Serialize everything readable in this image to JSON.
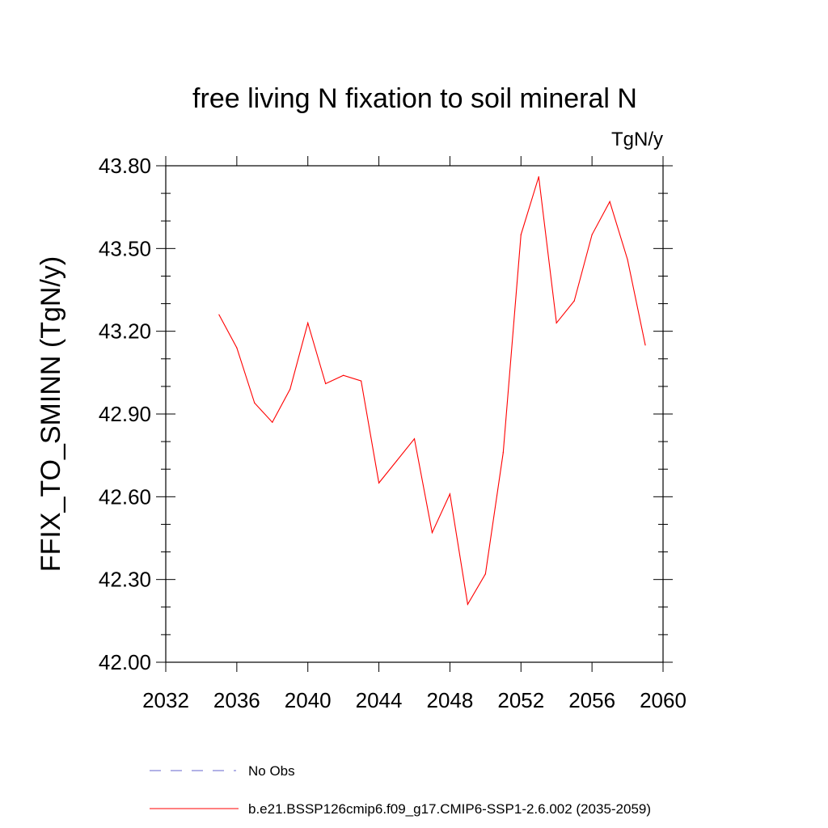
{
  "chart_data": {
    "type": "line",
    "title": "free living N fixation to soil mineral N",
    "units_label": "TgN/y",
    "ylabel": "FFIX_TO_SMINN  (TgN/y)",
    "xlabel": "",
    "xlim": [
      2032,
      2060
    ],
    "ylim": [
      42.0,
      43.8
    ],
    "x_ticks": [
      2032,
      2036,
      2040,
      2044,
      2048,
      2052,
      2056,
      2060
    ],
    "x_tick_labels": [
      "2032",
      "2036",
      "2040",
      "2044",
      "2048",
      "2052",
      "2056",
      "2060"
    ],
    "y_ticks": [
      42.0,
      42.3,
      42.6,
      42.9,
      43.2,
      43.5,
      43.8
    ],
    "y_tick_labels": [
      "42.00",
      "42.30",
      "42.60",
      "42.90",
      "43.20",
      "43.50",
      "43.80"
    ],
    "grid": false,
    "series": [
      {
        "name": "b.e21.BSSP126cmip6.f09_g17.CMIP6-SSP1-2.6.002 (2035-2059)",
        "color": "#ff0000",
        "x": [
          2035,
          2036,
          2037,
          2038,
          2039,
          2040,
          2041,
          2042,
          2043,
          2044,
          2045,
          2046,
          2047,
          2048,
          2049,
          2050,
          2051,
          2052,
          2053,
          2054,
          2055,
          2056,
          2057,
          2058,
          2059
        ],
        "y": [
          43.26,
          43.14,
          42.94,
          42.87,
          42.99,
          43.23,
          43.01,
          43.04,
          43.02,
          42.65,
          42.73,
          42.81,
          42.47,
          42.61,
          42.21,
          42.32,
          42.76,
          43.55,
          43.76,
          43.23,
          43.31,
          43.55,
          43.67,
          43.46,
          43.15
        ]
      }
    ],
    "legend": {
      "placement": "bottom",
      "entries": [
        {
          "label": "No Obs",
          "color": "#6666cc",
          "style": "dashed"
        },
        {
          "label": "b.e21.BSSP126cmip6.f09_g17.CMIP6-SSP1-2.6.002 (2035-2059)",
          "color": "#ff0000",
          "style": "solid"
        }
      ]
    }
  }
}
